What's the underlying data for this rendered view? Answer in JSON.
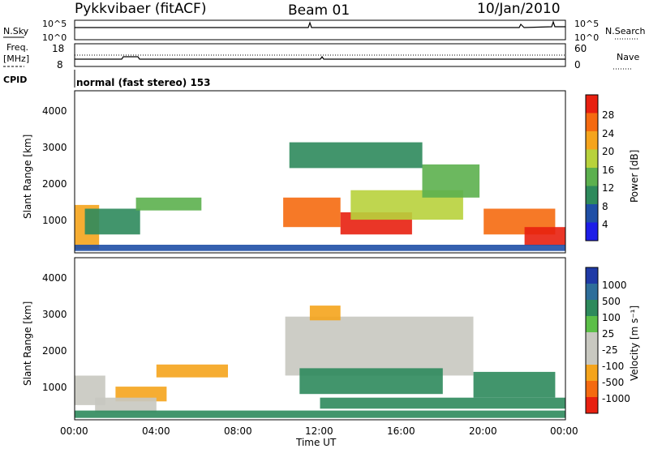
{
  "header": {
    "radar": "Pykkvibaer (fitACF)",
    "beam": "Beam 01",
    "date": "10/Jan/2010"
  },
  "nsky_panel": {
    "left_label": "N.Sky",
    "left_ticks": [
      "10^5",
      "10^0"
    ],
    "right_ticks": [
      "10^5",
      "10^0"
    ],
    "right_label": "N.Search"
  },
  "freq_panel": {
    "left_label_line1": "Freq.",
    "left_label_line2": "[MHz]",
    "left_ticks": [
      "18",
      "8"
    ],
    "right_ticks": [
      "60",
      "0"
    ],
    "right_label": "Nave",
    "frequency_MHz": 11.5,
    "nave": 30
  },
  "cpid": {
    "label": "CPID",
    "text": "normal (fast stereo) 153"
  },
  "colors": {
    "power_scale": [
      "#1d1de8",
      "#1f4fa6",
      "#2e8a5c",
      "#5cb04e",
      "#b8d23c",
      "#f5a41c",
      "#f56a10",
      "#e82010"
    ],
    "velocity_scale": [
      "#1f3aa6",
      "#2e6e9a",
      "#2e8a5c",
      "#5cbf48",
      "#c8c8c0",
      "#c8c8c0",
      "#f5a41c",
      "#f56a10",
      "#e82010"
    ]
  },
  "chart_data": [
    {
      "type": "heatmap",
      "quantity": "Power",
      "ylabel": "Slant Range [km]",
      "yticks": [
        "1000",
        "2000",
        "3000",
        "4000"
      ],
      "ylim": [
        200,
        4600
      ],
      "xlim": [
        0,
        24
      ],
      "colorbar_label": "Power [dB]",
      "colorbar_ticks": [
        "4",
        "8",
        "12",
        "16",
        "20",
        "24",
        "28"
      ],
      "clim": [
        0,
        32
      ],
      "regions": [
        {
          "t0": 0.0,
          "t1": 1.2,
          "r0": 300,
          "r1": 1500,
          "value": 22
        },
        {
          "t0": 0.5,
          "t1": 3.2,
          "r0": 700,
          "r1": 1400,
          "value": 10
        },
        {
          "t0": 3.0,
          "t1": 6.2,
          "r0": 1350,
          "r1": 1700,
          "value": 12
        },
        {
          "t0": 10.2,
          "t1": 13.0,
          "r0": 900,
          "r1": 1700,
          "value": 26
        },
        {
          "t0": 13.0,
          "t1": 16.5,
          "r0": 700,
          "r1": 1300,
          "value": 30
        },
        {
          "t0": 13.5,
          "t1": 19.0,
          "r0": 1100,
          "r1": 1900,
          "value": 18
        },
        {
          "t0": 17.0,
          "t1": 19.8,
          "r0": 1700,
          "r1": 2600,
          "value": 12
        },
        {
          "t0": 10.5,
          "t1": 17.0,
          "r0": 2500,
          "r1": 3200,
          "value": 8
        },
        {
          "t0": 20.0,
          "t1": 23.5,
          "r0": 700,
          "r1": 1400,
          "value": 26
        },
        {
          "t0": 22.0,
          "t1": 24.0,
          "r0": 400,
          "r1": 900,
          "value": 28
        },
        {
          "t0": 0.0,
          "t1": 24.0,
          "r0": 250,
          "r1": 420,
          "value": 4
        }
      ]
    },
    {
      "type": "heatmap",
      "quantity": "Velocity",
      "ylabel": "Slant Range [km]",
      "yticks": [
        "1000",
        "2000",
        "3000",
        "4000"
      ],
      "ylim": [
        200,
        4600
      ],
      "xlim": [
        0,
        24
      ],
      "xticks": [
        "00:00",
        "04:00",
        "08:00",
        "12:00",
        "16:00",
        "20:00",
        "00:00"
      ],
      "xlabel": "Time UT",
      "colorbar_label": "Velocity [m s⁻¹]",
      "colorbar_ticks": [
        "1000",
        "500",
        "100",
        "25",
        "-25",
        "-100",
        "-500",
        "-1000"
      ],
      "regions": [
        {
          "t0": 0.0,
          "t1": 1.5,
          "r0": 600,
          "r1": 1400,
          "value": 0
        },
        {
          "t0": 2.0,
          "t1": 4.5,
          "r0": 700,
          "r1": 1100,
          "value": -300
        },
        {
          "t0": 4.0,
          "t1": 7.5,
          "r0": 1350,
          "r1": 1700,
          "value": -150
        },
        {
          "t0": 1.0,
          "t1": 4.0,
          "r0": 400,
          "r1": 800,
          "value": 0
        },
        {
          "t0": 10.3,
          "t1": 19.5,
          "r0": 1400,
          "r1": 3000,
          "value": 0
        },
        {
          "t0": 11.0,
          "t1": 18.0,
          "r0": 900,
          "r1": 1600,
          "value": 200
        },
        {
          "t0": 12.0,
          "t1": 24.0,
          "r0": 500,
          "r1": 800,
          "value": 200
        },
        {
          "t0": 19.5,
          "t1": 23.5,
          "r0": 800,
          "r1": 1500,
          "value": 150
        },
        {
          "t0": 11.5,
          "t1": 13.0,
          "r0": 2900,
          "r1": 3300,
          "value": -300
        },
        {
          "t0": 0.0,
          "t1": 24.0,
          "r0": 250,
          "r1": 450,
          "value": 100
        }
      ]
    }
  ]
}
